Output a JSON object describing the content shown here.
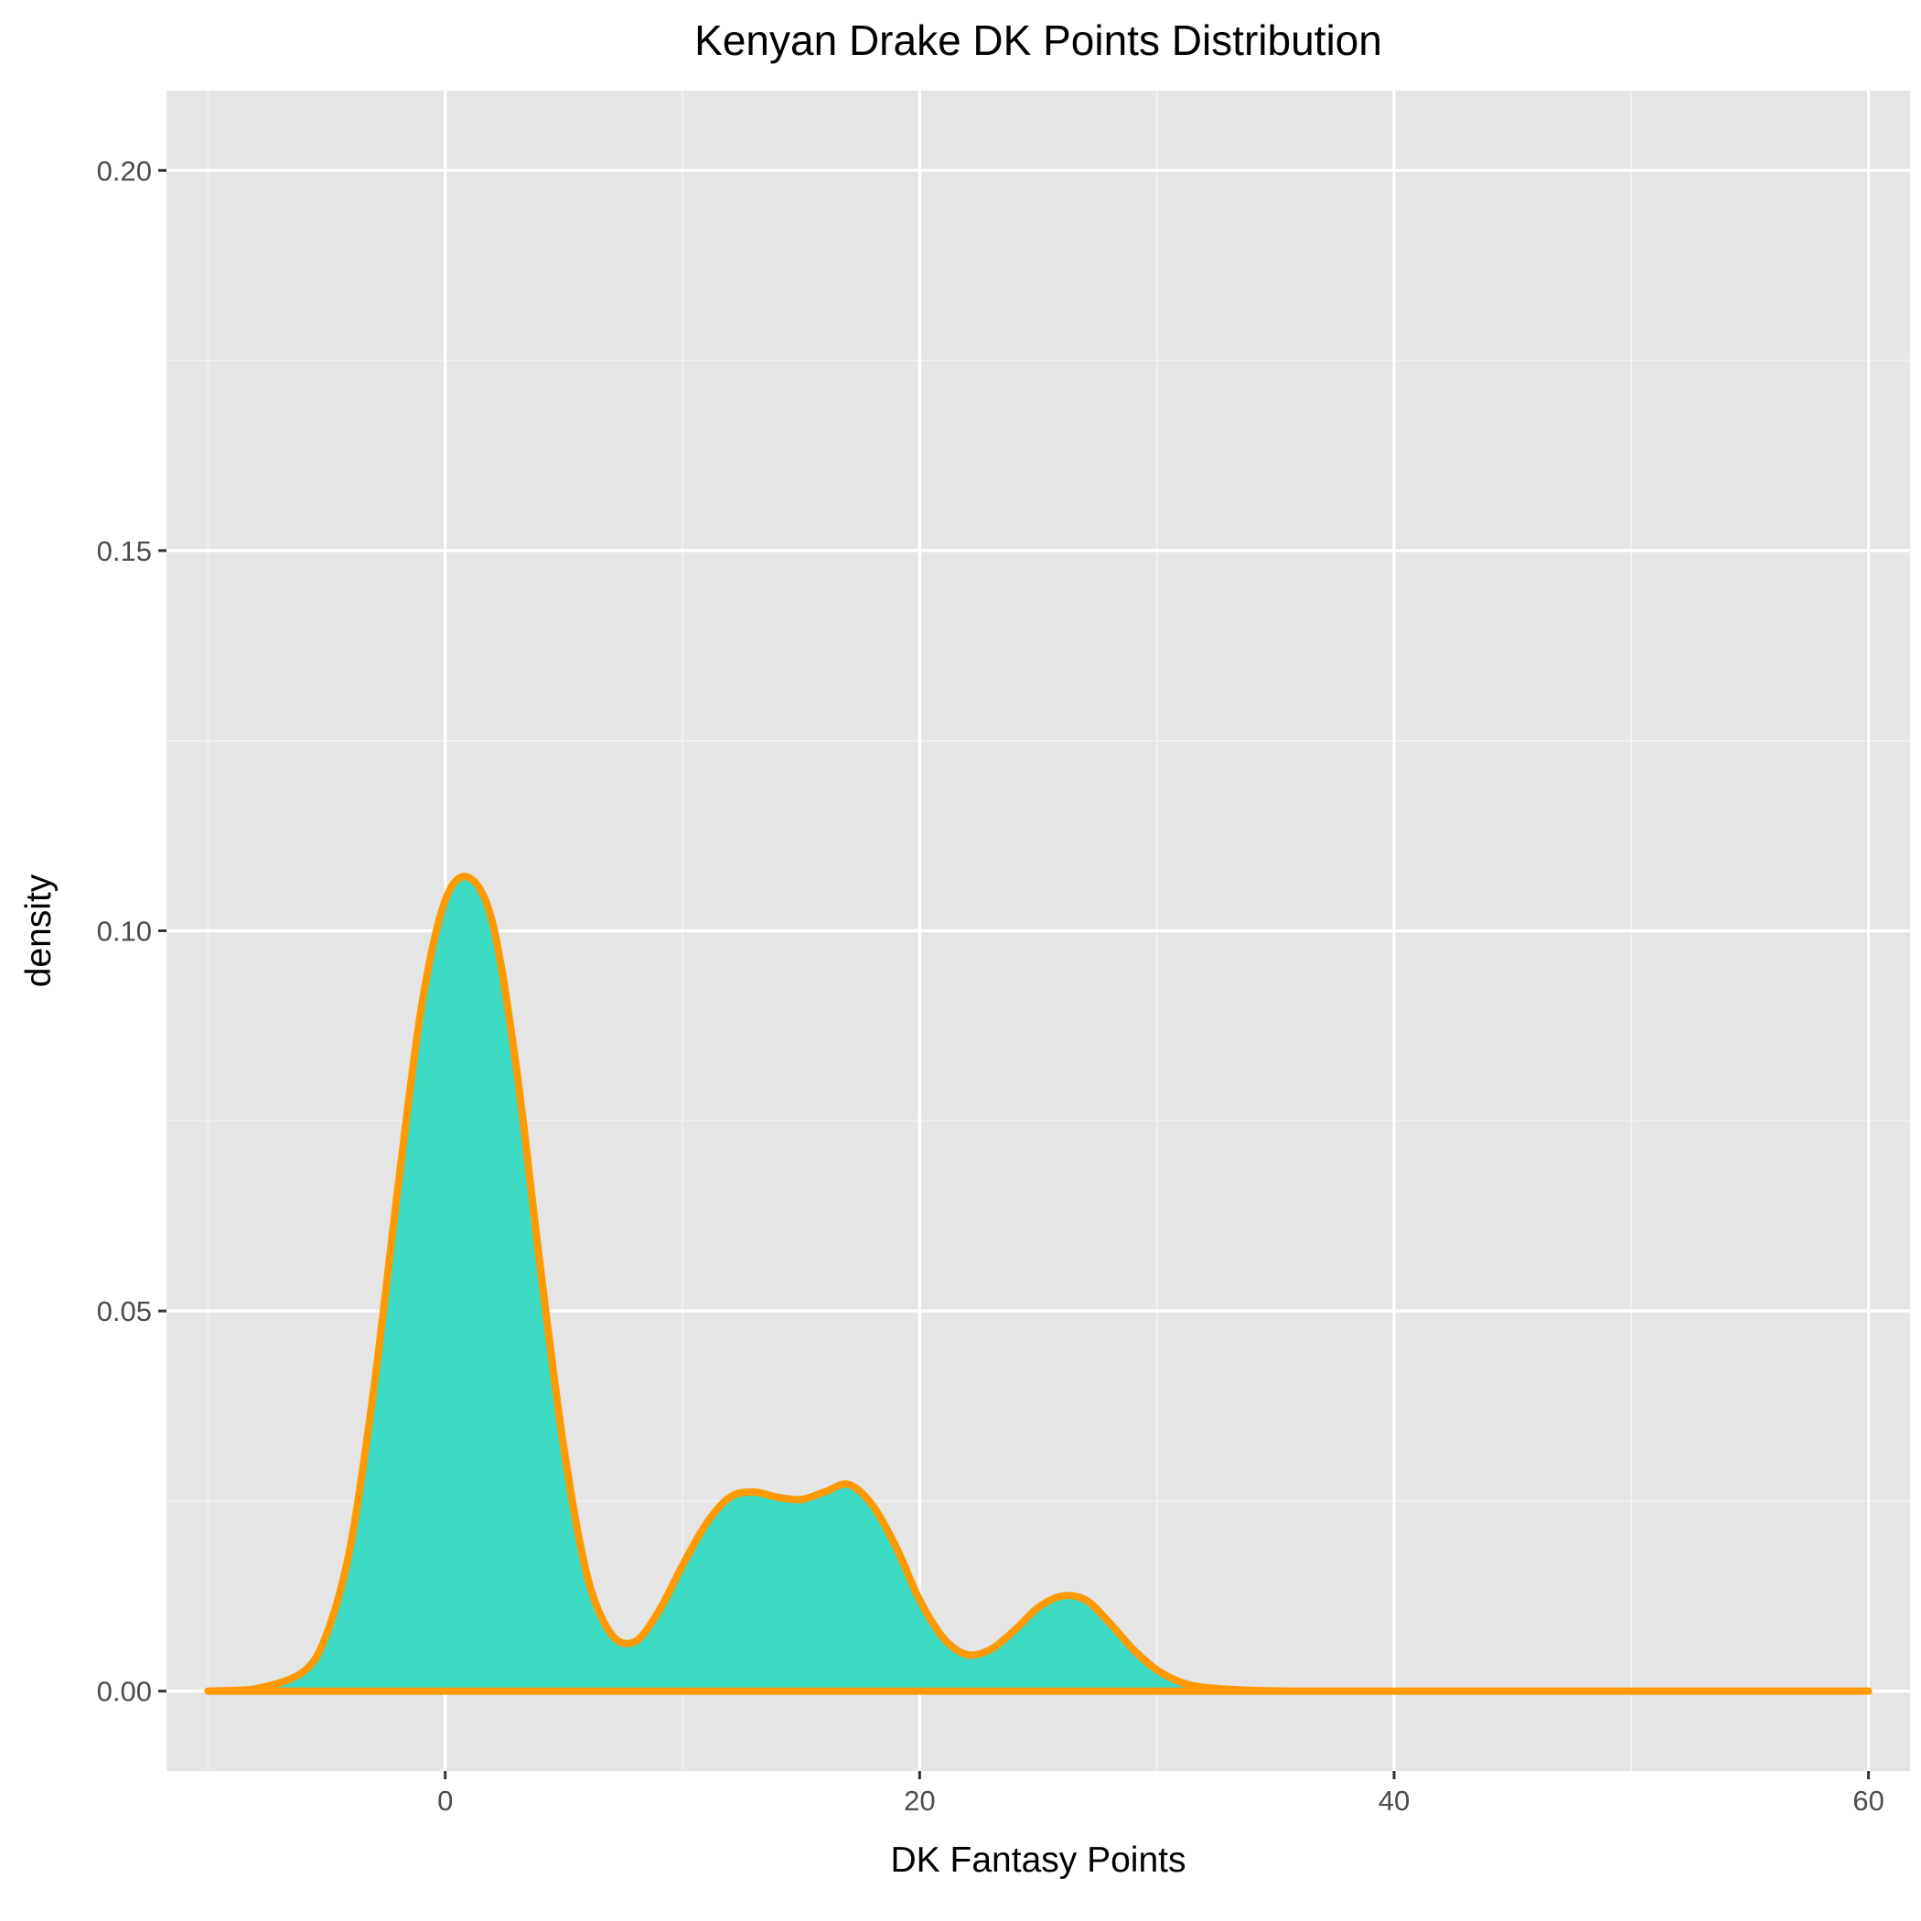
{
  "colors": {
    "panel_background": "#e5e5e5",
    "grid_major": "#ffffff",
    "grid_minor": "#f2f2f2",
    "fill": "#3ddbc4",
    "line": "#ff9900",
    "tick_text": "#4d4d4d",
    "tick_mark": "#333333"
  },
  "chart_data": {
    "type": "area",
    "title": "Kenyan Drake DK Points Distribution",
    "xlabel": "DK Fantasy Points",
    "ylabel": "density",
    "xlim": [
      -11.75,
      61.75
    ],
    "ylim": [
      -0.0105,
      0.2105
    ],
    "x_ticks": [
      0,
      20,
      40,
      60
    ],
    "x_tick_labels": [
      "0",
      "20",
      "40",
      "60"
    ],
    "y_ticks": [
      0,
      0.05,
      0.1,
      0.15,
      0.2
    ],
    "y_tick_labels": [
      "0.00",
      "0.05",
      "0.10",
      "0.15",
      "0.20"
    ],
    "grid": true,
    "legend": "none",
    "series": [
      {
        "x": [
          -10,
          -8,
          -6,
          -5,
          -4,
          -3,
          -2,
          -1,
          0,
          1,
          2,
          3,
          4,
          5,
          6,
          7,
          8,
          9,
          10,
          11,
          12,
          13,
          14,
          15,
          16,
          17,
          18,
          19,
          20,
          21,
          22,
          23,
          24,
          25,
          26,
          27,
          28,
          29,
          30,
          31,
          32,
          34,
          36,
          40,
          45,
          50,
          55,
          60
        ],
        "y": [
          0.0,
          0.0003,
          0.0025,
          0.0075,
          0.019,
          0.04,
          0.066,
          0.09,
          0.104,
          0.107,
          0.101,
          0.082,
          0.056,
          0.032,
          0.015,
          0.0075,
          0.0065,
          0.0105,
          0.0165,
          0.022,
          0.0255,
          0.0262,
          0.0255,
          0.0252,
          0.0262,
          0.0272,
          0.0245,
          0.019,
          0.012,
          0.007,
          0.0048,
          0.0055,
          0.008,
          0.011,
          0.0125,
          0.012,
          0.009,
          0.0055,
          0.0028,
          0.0012,
          0.0005,
          0.0001,
          0.0,
          0.0,
          0.0,
          0.0,
          0.0,
          0.0
        ]
      }
    ]
  }
}
